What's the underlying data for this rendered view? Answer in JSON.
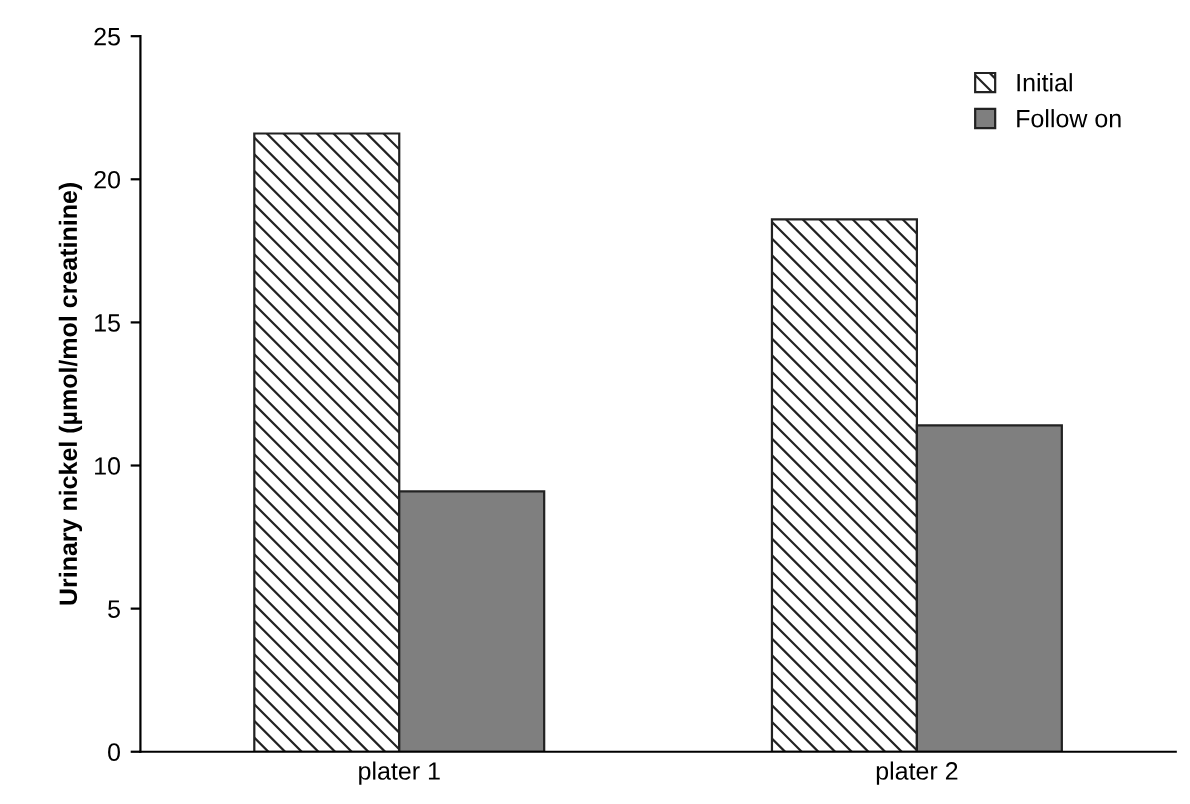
{
  "chart_data": {
    "type": "bar",
    "ylabel": "Urinary nickel (µmol/mol creatinine)",
    "categories": [
      "plater 1",
      "plater 2"
    ],
    "series": [
      {
        "name": "Initial",
        "color": "#222222",
        "values": [
          21.6,
          18.6
        ]
      },
      {
        "name": "Follow on",
        "color": "#7f7f7f",
        "values": [
          9.1,
          11.4
        ]
      }
    ],
    "ylim": [
      0,
      25
    ],
    "yticks": [
      0,
      5,
      10,
      15,
      20,
      25
    ],
    "grid": false,
    "legend": "top right"
  }
}
